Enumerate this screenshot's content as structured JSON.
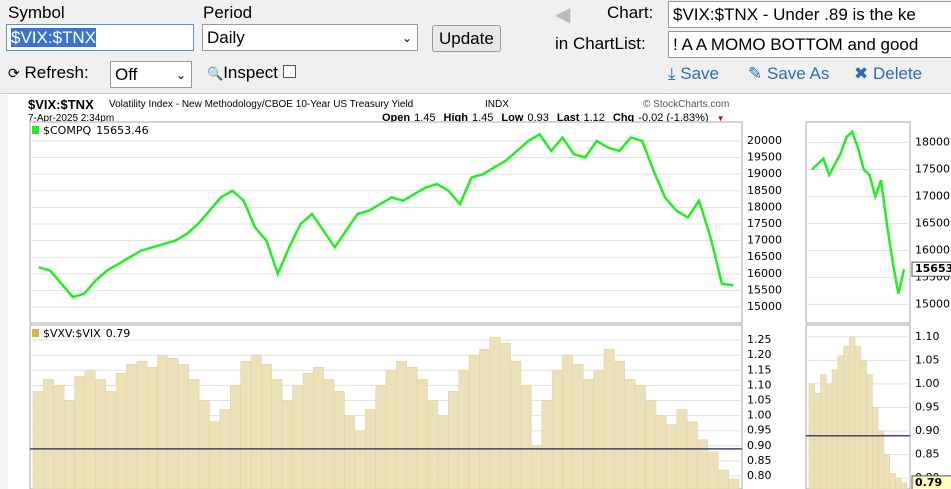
{
  "toolbar": {
    "symbol_label": "Symbol",
    "symbol_value": "$VIX:$TNX",
    "period_label": "Period",
    "period_value": "Daily",
    "update": "Update",
    "chart_label": "Chart:",
    "chart_value": "$VIX:$TNX - Under .89 is the ke",
    "chartlist_label": "in ChartList:",
    "chartlist_value": "! A A MOMO BOTTOM and good",
    "refresh_label": "Refresh:",
    "refresh_value": "Off",
    "inspect": "Inspect",
    "save": "Save",
    "save_as": "Save As",
    "delete": "Delete"
  },
  "header": {
    "title": "$VIX:$TNX",
    "subtitle": "Volatility Index - New Methodology/CBOE 10-Year US Treasury Yield",
    "exchange": "INDX",
    "brand": "© StockCharts.com",
    "date": "7-Apr-2025 2:34pm",
    "stats": [
      {
        "label": "Open",
        "value": "1.45"
      },
      {
        "label": "High",
        "value": "1.45"
      },
      {
        "label": "Low",
        "value": "0.93"
      },
      {
        "label": "Last",
        "value": "1.12"
      },
      {
        "label": "Chg",
        "value": "-0.02 (-1.83%)"
      }
    ]
  },
  "chart_data": [
    {
      "type": "line",
      "name": "$COMPQ",
      "legend_value": "15653.46",
      "color": "#22ee22",
      "ylim": [
        14520,
        20570
      ],
      "yticks": [
        15000,
        15500,
        16000,
        16500,
        17000,
        17500,
        18000,
        18500,
        19000,
        19500,
        20000
      ],
      "values": [
        16200,
        16100,
        15700,
        15300,
        15400,
        15800,
        16100,
        16300,
        16500,
        16700,
        16800,
        16900,
        17000,
        17200,
        17500,
        17900,
        18300,
        18500,
        18200,
        17400,
        17000,
        16000,
        16800,
        17500,
        17800,
        17300,
        16800,
        17300,
        17800,
        17900,
        18100,
        18300,
        18200,
        18400,
        18600,
        18700,
        18500,
        18100,
        18900,
        19000,
        19200,
        19400,
        19700,
        20000,
        20200,
        19700,
        20100,
        19600,
        19500,
        20000,
        19800,
        19700,
        20100,
        20000,
        19100,
        18300,
        17900,
        17700,
        18200,
        17100,
        15700,
        15653
      ]
    },
    {
      "type": "bar",
      "name": "$VXV:$VIX",
      "legend_value": "0.79",
      "color": "#ebe0b8",
      "ylim": [
        0.757,
        1.3
      ],
      "reference_line": 0.89,
      "reference_color": "#44446a",
      "yticks": [
        {
          "value": 0.8,
          "label": "0.80"
        },
        {
          "value": 0.85,
          "label": "0.85"
        },
        {
          "value": 0.9,
          "label": "0.90"
        },
        {
          "value": 0.95,
          "label": "0.95"
        },
        {
          "value": 1.0,
          "label": "1.00"
        },
        {
          "value": 1.05,
          "label": "1.05"
        },
        {
          "value": 1.1,
          "label": "1.10"
        },
        {
          "value": 1.15,
          "label": "1.15"
        },
        {
          "value": 1.2,
          "label": "1.20"
        },
        {
          "value": 1.25,
          "label": "1.25"
        }
      ],
      "values": [
        1.08,
        1.12,
        1.1,
        1.05,
        1.13,
        1.15,
        1.12,
        1.08,
        1.14,
        1.17,
        1.18,
        1.16,
        1.2,
        1.19,
        1.17,
        1.12,
        1.05,
        0.98,
        1.02,
        1.1,
        1.18,
        1.2,
        1.17,
        1.12,
        1.05,
        1.1,
        1.14,
        1.16,
        1.12,
        1.08,
        1.0,
        0.95,
        1.02,
        1.1,
        1.15,
        1.18,
        1.16,
        1.12,
        1.05,
        1.0,
        1.08,
        1.15,
        1.2,
        1.22,
        1.26,
        1.24,
        1.18,
        1.1,
        0.9,
        1.05,
        1.15,
        1.2,
        1.17,
        1.12,
        1.15,
        1.22,
        1.18,
        1.12,
        1.1,
        1.05,
        1.0,
        0.97,
        1.02,
        0.98,
        0.92,
        0.88,
        0.82,
        0.79
      ]
    },
    {
      "type": "line",
      "color": "#22ee22",
      "last_label": "15653.",
      "ylim": [
        14656,
        18380
      ],
      "yticks": [
        15000,
        15500,
        16000,
        16500,
        17000,
        17500,
        18000
      ],
      "values": [
        17500,
        17600,
        17700,
        17400,
        17600,
        17800,
        18100,
        18200,
        17900,
        17500,
        17400,
        17000,
        17300,
        16500,
        15800,
        15200,
        15653
      ]
    },
    {
      "type": "bar",
      "color": "#ebe0b8",
      "last_label": "0.79",
      "ylim": [
        0.777,
        1.125
      ],
      "reference_line": 0.89,
      "reference_color": "#44446a",
      "yticks": [
        {
          "value": 0.8,
          "label": "0.80"
        },
        {
          "value": 0.85,
          "label": "0.85"
        },
        {
          "value": 0.9,
          "label": "0.90"
        },
        {
          "value": 0.95,
          "label": "0.95"
        },
        {
          "value": 1.0,
          "label": "1.00"
        },
        {
          "value": 1.05,
          "label": "1.05"
        },
        {
          "value": 1.1,
          "label": "1.10"
        }
      ],
      "values": [
        1.0,
        0.98,
        1.02,
        1.0,
        1.03,
        1.06,
        1.08,
        1.1,
        1.08,
        1.05,
        1.02,
        0.95,
        0.9,
        0.85,
        0.81,
        0.8,
        0.79
      ]
    }
  ]
}
